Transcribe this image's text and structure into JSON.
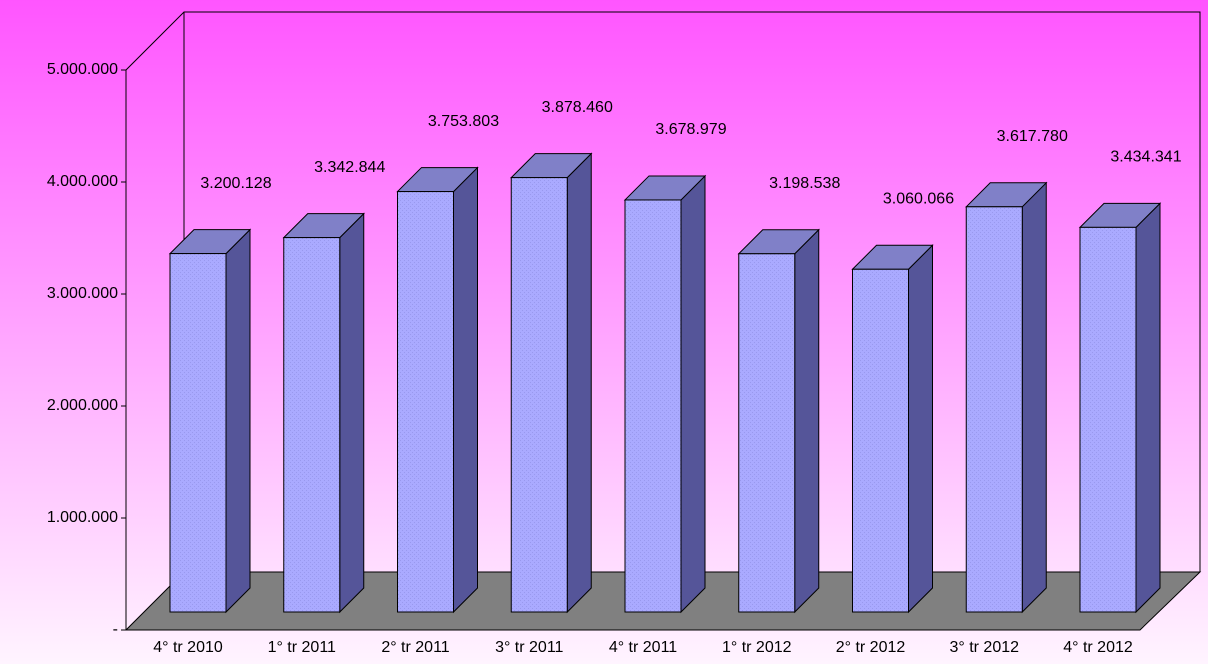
{
  "chart_data": {
    "type": "bar3d",
    "categories": [
      "4° tr 2010",
      "1° tr 2011",
      "2° tr 2011",
      "3° tr 2011",
      "4° tr 2011",
      "1° tr 2012",
      "2° tr 2012",
      "3° tr 2012",
      "4° tr 2012"
    ],
    "values": [
      3200128,
      3342844,
      3753803,
      3878460,
      3678979,
      3198538,
      3060066,
      3617780,
      3434341
    ],
    "value_labels": [
      "3.200.128",
      "3.342.844",
      "3.753.803",
      "3.878.460",
      "3.678.979",
      "3.198.538",
      "3.060.066",
      "3.617.780",
      "3.434.341"
    ],
    "color": "#aaaaff",
    "ylim": [
      0,
      5000000
    ],
    "yticks": [
      {
        "value": 0,
        "label": "-"
      },
      {
        "value": 1000000,
        "label": "1.000.000"
      },
      {
        "value": 2000000,
        "label": "2.000.000"
      },
      {
        "value": 3000000,
        "label": "3.000.000"
      },
      {
        "value": 4000000,
        "label": "4.000.000"
      },
      {
        "value": 5000000,
        "label": "5.000.000"
      }
    ],
    "grid": false
  }
}
